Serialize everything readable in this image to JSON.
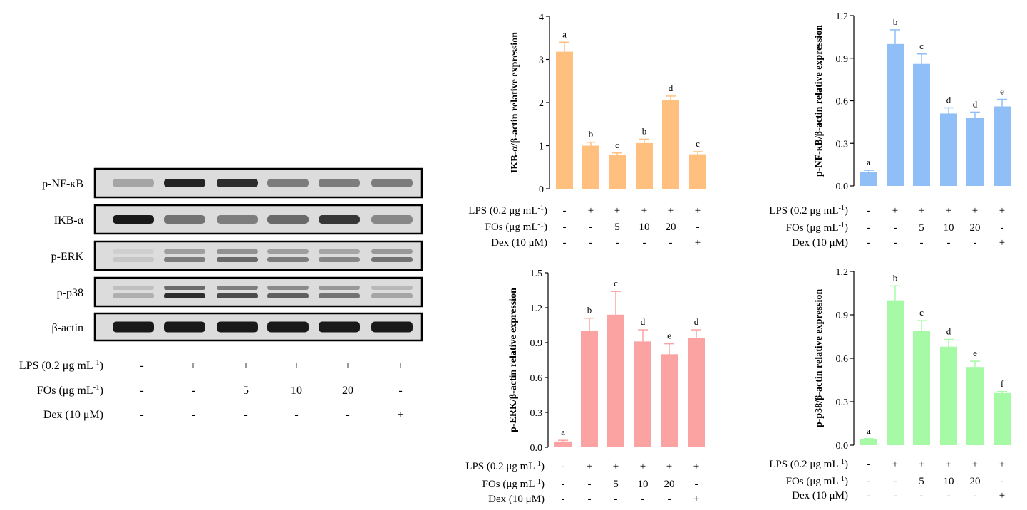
{
  "western_blot": {
    "bands": [
      "p-NF-κB",
      "IKB-α",
      "p-ERK",
      "p-p38",
      "β-actin"
    ],
    "band_intensity": [
      [
        0.25,
        0.9,
        0.85,
        0.45,
        0.45,
        0.45
      ],
      [
        0.95,
        0.5,
        0.45,
        0.55,
        0.8,
        0.4
      ],
      [
        0.08,
        0.45,
        0.55,
        0.45,
        0.4,
        0.5
      ],
      [
        0.2,
        0.85,
        0.7,
        0.6,
        0.5,
        0.25
      ],
      [
        0.95,
        0.95,
        0.95,
        0.95,
        0.95,
        0.95
      ]
    ],
    "treatment_labels": [
      "LPS (0.2 μg mL",
      "FOs (μg mL",
      "Dex (10 μM)"
    ],
    "treatment_superscripts": [
      "-1",
      "-1",
      ""
    ],
    "treatment_suffixes": [
      ")",
      ")",
      ""
    ],
    "treatment_values": [
      [
        "-",
        "+",
        "+",
        "+",
        "+",
        "+"
      ],
      [
        "-",
        "-",
        "5",
        "10",
        "20",
        "-"
      ],
      [
        "-",
        "-",
        "-",
        "-",
        "-",
        "+"
      ]
    ]
  },
  "chart_data": [
    {
      "id": "ikb",
      "type": "bar",
      "ylabel": "IKB-α/β-actin relative expression",
      "ylim": [
        0,
        4
      ],
      "yticks": [
        "0",
        "1",
        "2",
        "3",
        "4"
      ],
      "values": [
        3.18,
        1.0,
        0.78,
        1.06,
        2.05,
        0.8
      ],
      "errors": [
        0.22,
        0.08,
        0.05,
        0.09,
        0.1,
        0.06
      ],
      "letters": [
        "a",
        "b",
        "c",
        "b",
        "d",
        "c"
      ],
      "color": "#FFC07F",
      "treatment_labels": [
        "LPS (0.2 μg mL",
        "FOs (μg mL",
        "Dex (10 μM)"
      ],
      "treatment_superscripts": [
        "-1",
        "-1",
        ""
      ],
      "treatment_suffixes": [
        ")",
        ")",
        ""
      ],
      "treatment_values": [
        [
          "-",
          "+",
          "+",
          "+",
          "+",
          "+"
        ],
        [
          "-",
          "-",
          "5",
          "10",
          "20",
          "-"
        ],
        [
          "-",
          "-",
          "-",
          "-",
          "-",
          "+"
        ]
      ]
    },
    {
      "id": "nfkb",
      "type": "bar",
      "ylabel": "p-NF-κB/β-actin relative expression",
      "ylim": [
        0,
        1.2
      ],
      "yticks": [
        "0.0",
        "0.3",
        "0.6",
        "0.9",
        "1.2"
      ],
      "values": [
        0.1,
        1.0,
        0.86,
        0.51,
        0.48,
        0.56
      ],
      "errors": [
        0.01,
        0.1,
        0.07,
        0.04,
        0.04,
        0.05
      ],
      "letters": [
        "a",
        "b",
        "c",
        "d",
        "d",
        "e"
      ],
      "color": "#8FBFF6",
      "treatment_labels": [
        "LPS (0.2 μg mL",
        "FOs (μg mL",
        "Dex (10 μM)"
      ],
      "treatment_superscripts": [
        "-1",
        "-1",
        ""
      ],
      "treatment_suffixes": [
        ")",
        ")",
        ""
      ],
      "treatment_values": [
        [
          "-",
          "+",
          "+",
          "+",
          "+",
          "+"
        ],
        [
          "-",
          "-",
          "5",
          "10",
          "20",
          "-"
        ],
        [
          "-",
          "-",
          "-",
          "-",
          "-",
          "+"
        ]
      ]
    },
    {
      "id": "erk",
      "type": "bar",
      "ylabel": "p-ERK/β-actin relative expression",
      "ylim": [
        0,
        1.5
      ],
      "yticks": [
        "0.0",
        "0.3",
        "0.6",
        "0.9",
        "1.2",
        "1.5"
      ],
      "values": [
        0.05,
        1.0,
        1.14,
        0.91,
        0.8,
        0.94
      ],
      "errors": [
        0.01,
        0.11,
        0.2,
        0.1,
        0.09,
        0.07
      ],
      "letters": [
        "a",
        "b",
        "c",
        "d",
        "e",
        "d"
      ],
      "color": "#FBA3A3",
      "treatment_labels": [
        "LPS (0.2 μg mL",
        "FOs (μg mL",
        "Dex (10 μM)"
      ],
      "treatment_superscripts": [
        "-1",
        "-1",
        ""
      ],
      "treatment_suffixes": [
        ")",
        ")",
        ""
      ],
      "treatment_values": [
        [
          "-",
          "+",
          "+",
          "+",
          "+",
          "+"
        ],
        [
          "-",
          "-",
          "5",
          "10",
          "20",
          "-"
        ],
        [
          "-",
          "-",
          "-",
          "-",
          "-",
          "+"
        ]
      ]
    },
    {
      "id": "p38",
      "type": "bar",
      "ylabel": "p-p38/β-actin relative expression",
      "ylim": [
        0,
        1.2
      ],
      "yticks": [
        "0.0",
        "0.3",
        "0.6",
        "0.9",
        "1.2"
      ],
      "values": [
        0.04,
        1.0,
        0.79,
        0.68,
        0.54,
        0.36
      ],
      "errors": [
        0.005,
        0.1,
        0.07,
        0.05,
        0.04,
        0.01
      ],
      "letters": [
        "a",
        "b",
        "c",
        "d",
        "e",
        "f"
      ],
      "color": "#A6FAA6",
      "treatment_labels": [
        "LPS (0.2 μg mL",
        "FOs (μg mL",
        "Dex (10 μM)"
      ],
      "treatment_superscripts": [
        "-1",
        "-1",
        ""
      ],
      "treatment_suffixes": [
        ")",
        ")",
        ""
      ],
      "treatment_values": [
        [
          "-",
          "+",
          "+",
          "+",
          "+",
          "+"
        ],
        [
          "-",
          "-",
          "5",
          "10",
          "20",
          "-"
        ],
        [
          "-",
          "-",
          "-",
          "-",
          "-",
          "+"
        ]
      ]
    }
  ]
}
